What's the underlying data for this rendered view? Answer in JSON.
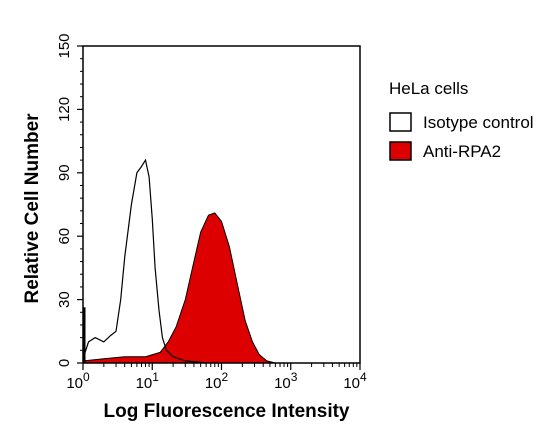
{
  "chart_data": {
    "type": "area",
    "title": "",
    "xlabel": "Log Fluorescence Intensity",
    "ylabel": "Relative Cell Number",
    "x_scale": "log",
    "xlim": [
      1,
      10000
    ],
    "ylim": [
      0,
      150
    ],
    "x_tick_labels": [
      {
        "base": "10",
        "exp": "0"
      },
      {
        "base": "10",
        "exp": "1"
      },
      {
        "base": "10",
        "exp": "2"
      },
      {
        "base": "10",
        "exp": "3"
      },
      {
        "base": "10",
        "exp": "4"
      }
    ],
    "y_ticks": [
      "0",
      "30",
      "60",
      "90",
      "120",
      "150"
    ],
    "grid": false,
    "legend": {
      "title": "HeLa cells",
      "placement": "right",
      "entries": [
        {
          "label": "Isotype control",
          "swatch": "#ffffff"
        },
        {
          "label": "Anti-RPA2",
          "swatch": "#dd0000"
        }
      ]
    },
    "series": [
      {
        "name": "Isotype control",
        "style": "outline",
        "color": "#000000",
        "points": [
          [
            1.0,
            2
          ],
          [
            1.2,
            10
          ],
          [
            1.5,
            12
          ],
          [
            2.0,
            10
          ],
          [
            2.5,
            13
          ],
          [
            3.0,
            15
          ],
          [
            3.5,
            30
          ],
          [
            4.0,
            50
          ],
          [
            5.0,
            75
          ],
          [
            6.0,
            90
          ],
          [
            7.0,
            93
          ],
          [
            8.0,
            96
          ],
          [
            9.0,
            88
          ],
          [
            10.0,
            68
          ],
          [
            11.0,
            45
          ],
          [
            12.5,
            25
          ],
          [
            14.0,
            12
          ],
          [
            16.0,
            6
          ],
          [
            20.0,
            3
          ],
          [
            30.0,
            1
          ],
          [
            60.0,
            0
          ]
        ]
      },
      {
        "name": "Anti-RPA2",
        "style": "filled",
        "color": "#dd0000",
        "points": [
          [
            1.0,
            1
          ],
          [
            2.0,
            2
          ],
          [
            4.0,
            3
          ],
          [
            8.0,
            3
          ],
          [
            13.0,
            5
          ],
          [
            17.0,
            10
          ],
          [
            22.0,
            17
          ],
          [
            30.0,
            30
          ],
          [
            40.0,
            48
          ],
          [
            50.0,
            62
          ],
          [
            65.0,
            70
          ],
          [
            80.0,
            71
          ],
          [
            100.0,
            67
          ],
          [
            130.0,
            55
          ],
          [
            170.0,
            37
          ],
          [
            220.0,
            20
          ],
          [
            280.0,
            10
          ],
          [
            350.0,
            4
          ],
          [
            450.0,
            1
          ],
          [
            600.0,
            0
          ]
        ]
      }
    ]
  }
}
